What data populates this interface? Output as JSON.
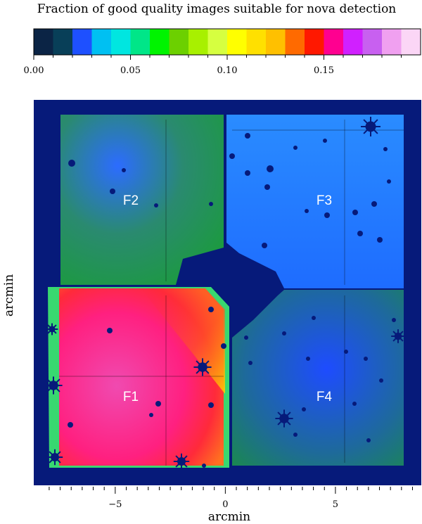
{
  "chart_data": {
    "type": "heatmap",
    "title": "Fraction of good quality images suitable for nova detection",
    "xlabel": "arcmin",
    "ylabel": "arcmin",
    "colorbar": {
      "range": [
        0.0,
        0.2
      ],
      "ticks": [
        0.0,
        0.05,
        0.1,
        0.15
      ],
      "tick_labels": [
        "0.00",
        "0.05",
        "0.10",
        "0.15"
      ],
      "colors": [
        "#0b2445",
        "#083f58",
        "#1e50ff",
        "#00c0f2",
        "#00e6e0",
        "#00e688",
        "#00f400",
        "#6cd000",
        "#a8f000",
        "#d6ff40",
        "#ffff00",
        "#ffe000",
        "#ffc000",
        "#ff6a00",
        "#ff1800",
        "#ff0090",
        "#d020ff",
        "#c860f0",
        "#f0a0f0",
        "#fbd6f6"
      ]
    },
    "x_axis": {
      "range": [
        -8.7,
        8.9
      ],
      "major_ticks": [
        -5,
        0,
        5
      ],
      "tick_labels": [
        "−5",
        "0",
        "5"
      ]
    },
    "fields": [
      {
        "name": "F1",
        "mean_fraction": 0.155
      },
      {
        "name": "F2",
        "mean_fraction": 0.04
      },
      {
        "name": "F3",
        "mean_fraction": 0.025
      },
      {
        "name": "F4",
        "mean_fraction": 0.035
      }
    ]
  }
}
